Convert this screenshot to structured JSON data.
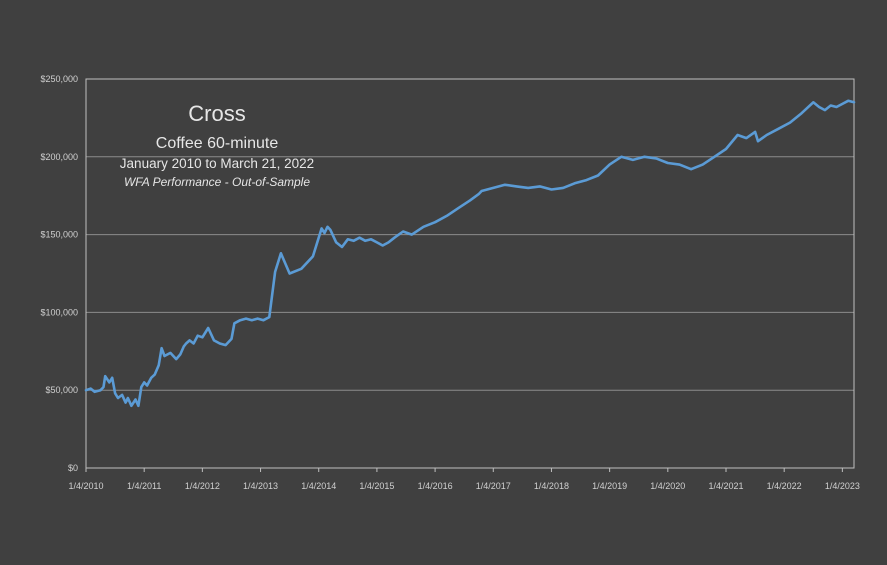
{
  "chart_data": {
    "type": "line",
    "title": "Cross",
    "subtitle": "Coffee 60-minute",
    "date_range": "January 2010 to March 21, 2022",
    "note": "WFA Performance - Out-of-Sample",
    "xlabel": "",
    "ylabel": "",
    "ylim": [
      0,
      250000
    ],
    "y_ticks": [
      "$0",
      "$50,000",
      "$100,000",
      "$150,000",
      "$200,000",
      "$250,000"
    ],
    "x_ticks": [
      "1/4/2010",
      "1/4/2011",
      "1/4/2012",
      "1/4/2013",
      "1/4/2014",
      "1/4/2015",
      "1/4/2016",
      "1/4/2017",
      "1/4/2018",
      "1/4/2019",
      "1/4/2020",
      "1/4/2021",
      "1/4/2022",
      "1/4/2023"
    ],
    "grid": true,
    "colors": {
      "background": "#404040",
      "line": "#5b9bd5",
      "grid": "#8c8c8c",
      "axis": "#bfbfbf",
      "text": "#e6e6e6"
    },
    "series": [
      {
        "x": [
          2010.0,
          2010.08,
          2010.15,
          2010.25,
          2010.3,
          2010.33,
          2010.4,
          2010.45,
          2010.5,
          2010.55,
          2010.62,
          2010.68,
          2010.72,
          2010.78,
          2010.85,
          2010.9,
          2010.95,
          2011.0,
          2011.05,
          2011.12,
          2011.18,
          2011.25,
          2011.3,
          2011.35,
          2011.45,
          2011.55,
          2011.62,
          2011.68,
          2011.72,
          2011.78,
          2011.85,
          2011.92,
          2012.0,
          2012.1,
          2012.2,
          2012.3,
          2012.4,
          2012.5,
          2012.55,
          2012.65,
          2012.75,
          2012.85,
          2012.95,
          2013.05,
          2013.15,
          2013.25,
          2013.35,
          2013.5,
          2013.7,
          2013.9,
          2014.0,
          2014.05,
          2014.1,
          2014.15,
          2014.2,
          2014.3,
          2014.4,
          2014.5,
          2014.6,
          2014.7,
          2014.8,
          2014.9,
          2015.0,
          2015.1,
          2015.2,
          2015.3,
          2015.45,
          2015.6,
          2015.8,
          2016.0,
          2016.2,
          2016.4,
          2016.6,
          2016.75,
          2016.8,
          2017.0,
          2017.2,
          2017.4,
          2017.6,
          2017.8,
          2018.0,
          2018.2,
          2018.4,
          2018.6,
          2018.8,
          2019.0,
          2019.2,
          2019.4,
          2019.6,
          2019.8,
          2020.0,
          2020.2,
          2020.4,
          2020.6,
          2020.8,
          2021.0,
          2021.2,
          2021.35,
          2021.5,
          2021.55,
          2021.7,
          2021.9,
          2022.1,
          2022.3,
          2022.5,
          2022.6,
          2022.7,
          2022.8,
          2022.9,
          2023.0,
          2023.1,
          2023.2
        ],
        "y": [
          50000,
          51000,
          49000,
          50000,
          52000,
          59000,
          55000,
          58000,
          48000,
          45000,
          47000,
          42000,
          45000,
          40000,
          44000,
          40000,
          52000,
          55000,
          53000,
          58000,
          60000,
          66000,
          77000,
          72000,
          74000,
          70000,
          73000,
          78000,
          80000,
          82000,
          80000,
          85000,
          84000,
          90000,
          82000,
          80000,
          79000,
          83000,
          93000,
          95000,
          96000,
          95000,
          96000,
          95000,
          97000,
          126000,
          138000,
          125000,
          128000,
          136000,
          148000,
          154000,
          151000,
          155000,
          153000,
          145000,
          142000,
          147000,
          146000,
          148000,
          146000,
          147000,
          145000,
          143000,
          145000,
          148000,
          152000,
          150000,
          155000,
          158000,
          162000,
          167000,
          172000,
          176000,
          178000,
          180000,
          182000,
          181000,
          180000,
          181000,
          179000,
          180000,
          183000,
          185000,
          188000,
          195000,
          200000,
          198000,
          200000,
          199000,
          196000,
          195000,
          192000,
          195000,
          200000,
          205000,
          214000,
          212000,
          216000,
          210000,
          214000,
          218000,
          222000,
          228000,
          235000,
          232000,
          230000,
          233000,
          232000,
          234000,
          236000,
          235000
        ]
      }
    ]
  }
}
